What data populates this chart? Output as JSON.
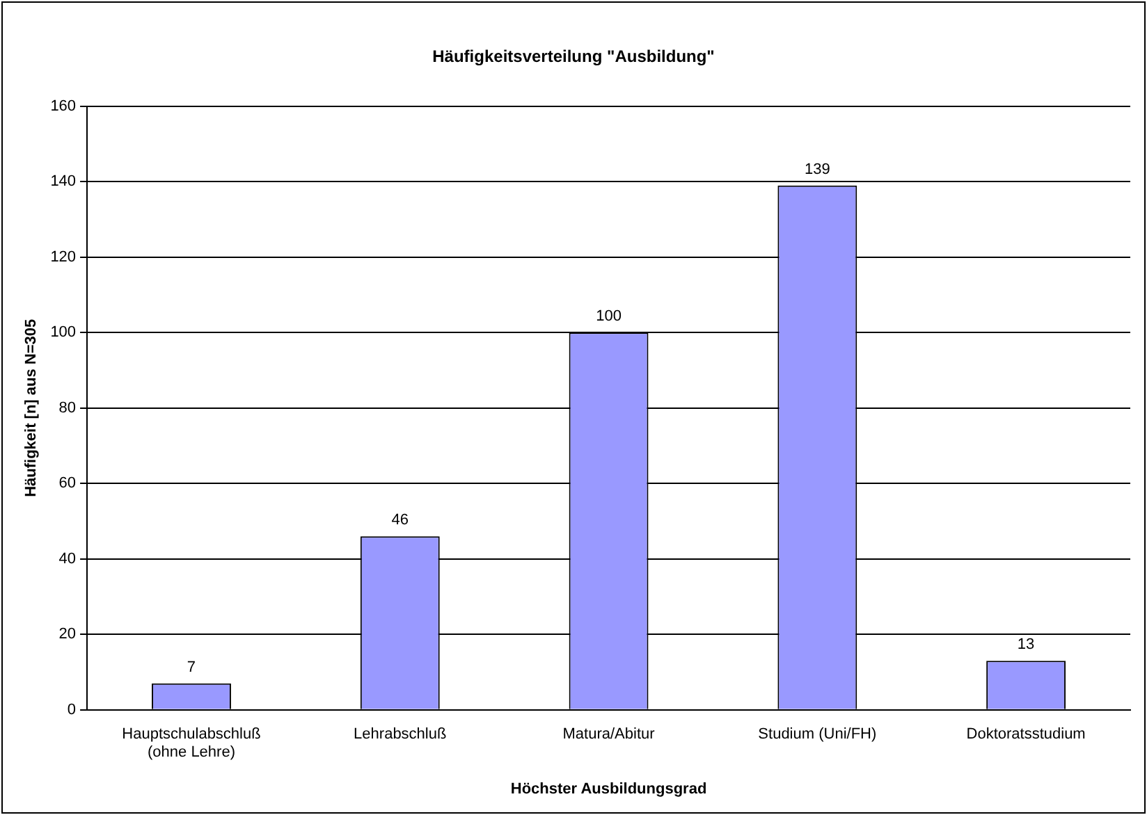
{
  "chart_data": {
    "type": "bar",
    "title": "Häufigkeitsverteilung \"Ausbildung\"",
    "xlabel": "Höchster Ausbildungsgrad",
    "ylabel": "Häufigkeit [n] aus N=305",
    "categories": [
      "Hauptschulabschluß\n(ohne Lehre)",
      "Lehrabschluß",
      "Matura/Abitur",
      "Studium (Uni/FH)",
      "Doktoratsstudium"
    ],
    "values": [
      7,
      46,
      100,
      139,
      13
    ],
    "color": "#9999ff",
    "ylim": [
      0,
      160
    ],
    "yticks": [
      0,
      20,
      40,
      60,
      80,
      100,
      120,
      140,
      160
    ],
    "grid": "y",
    "data_labels": true
  }
}
